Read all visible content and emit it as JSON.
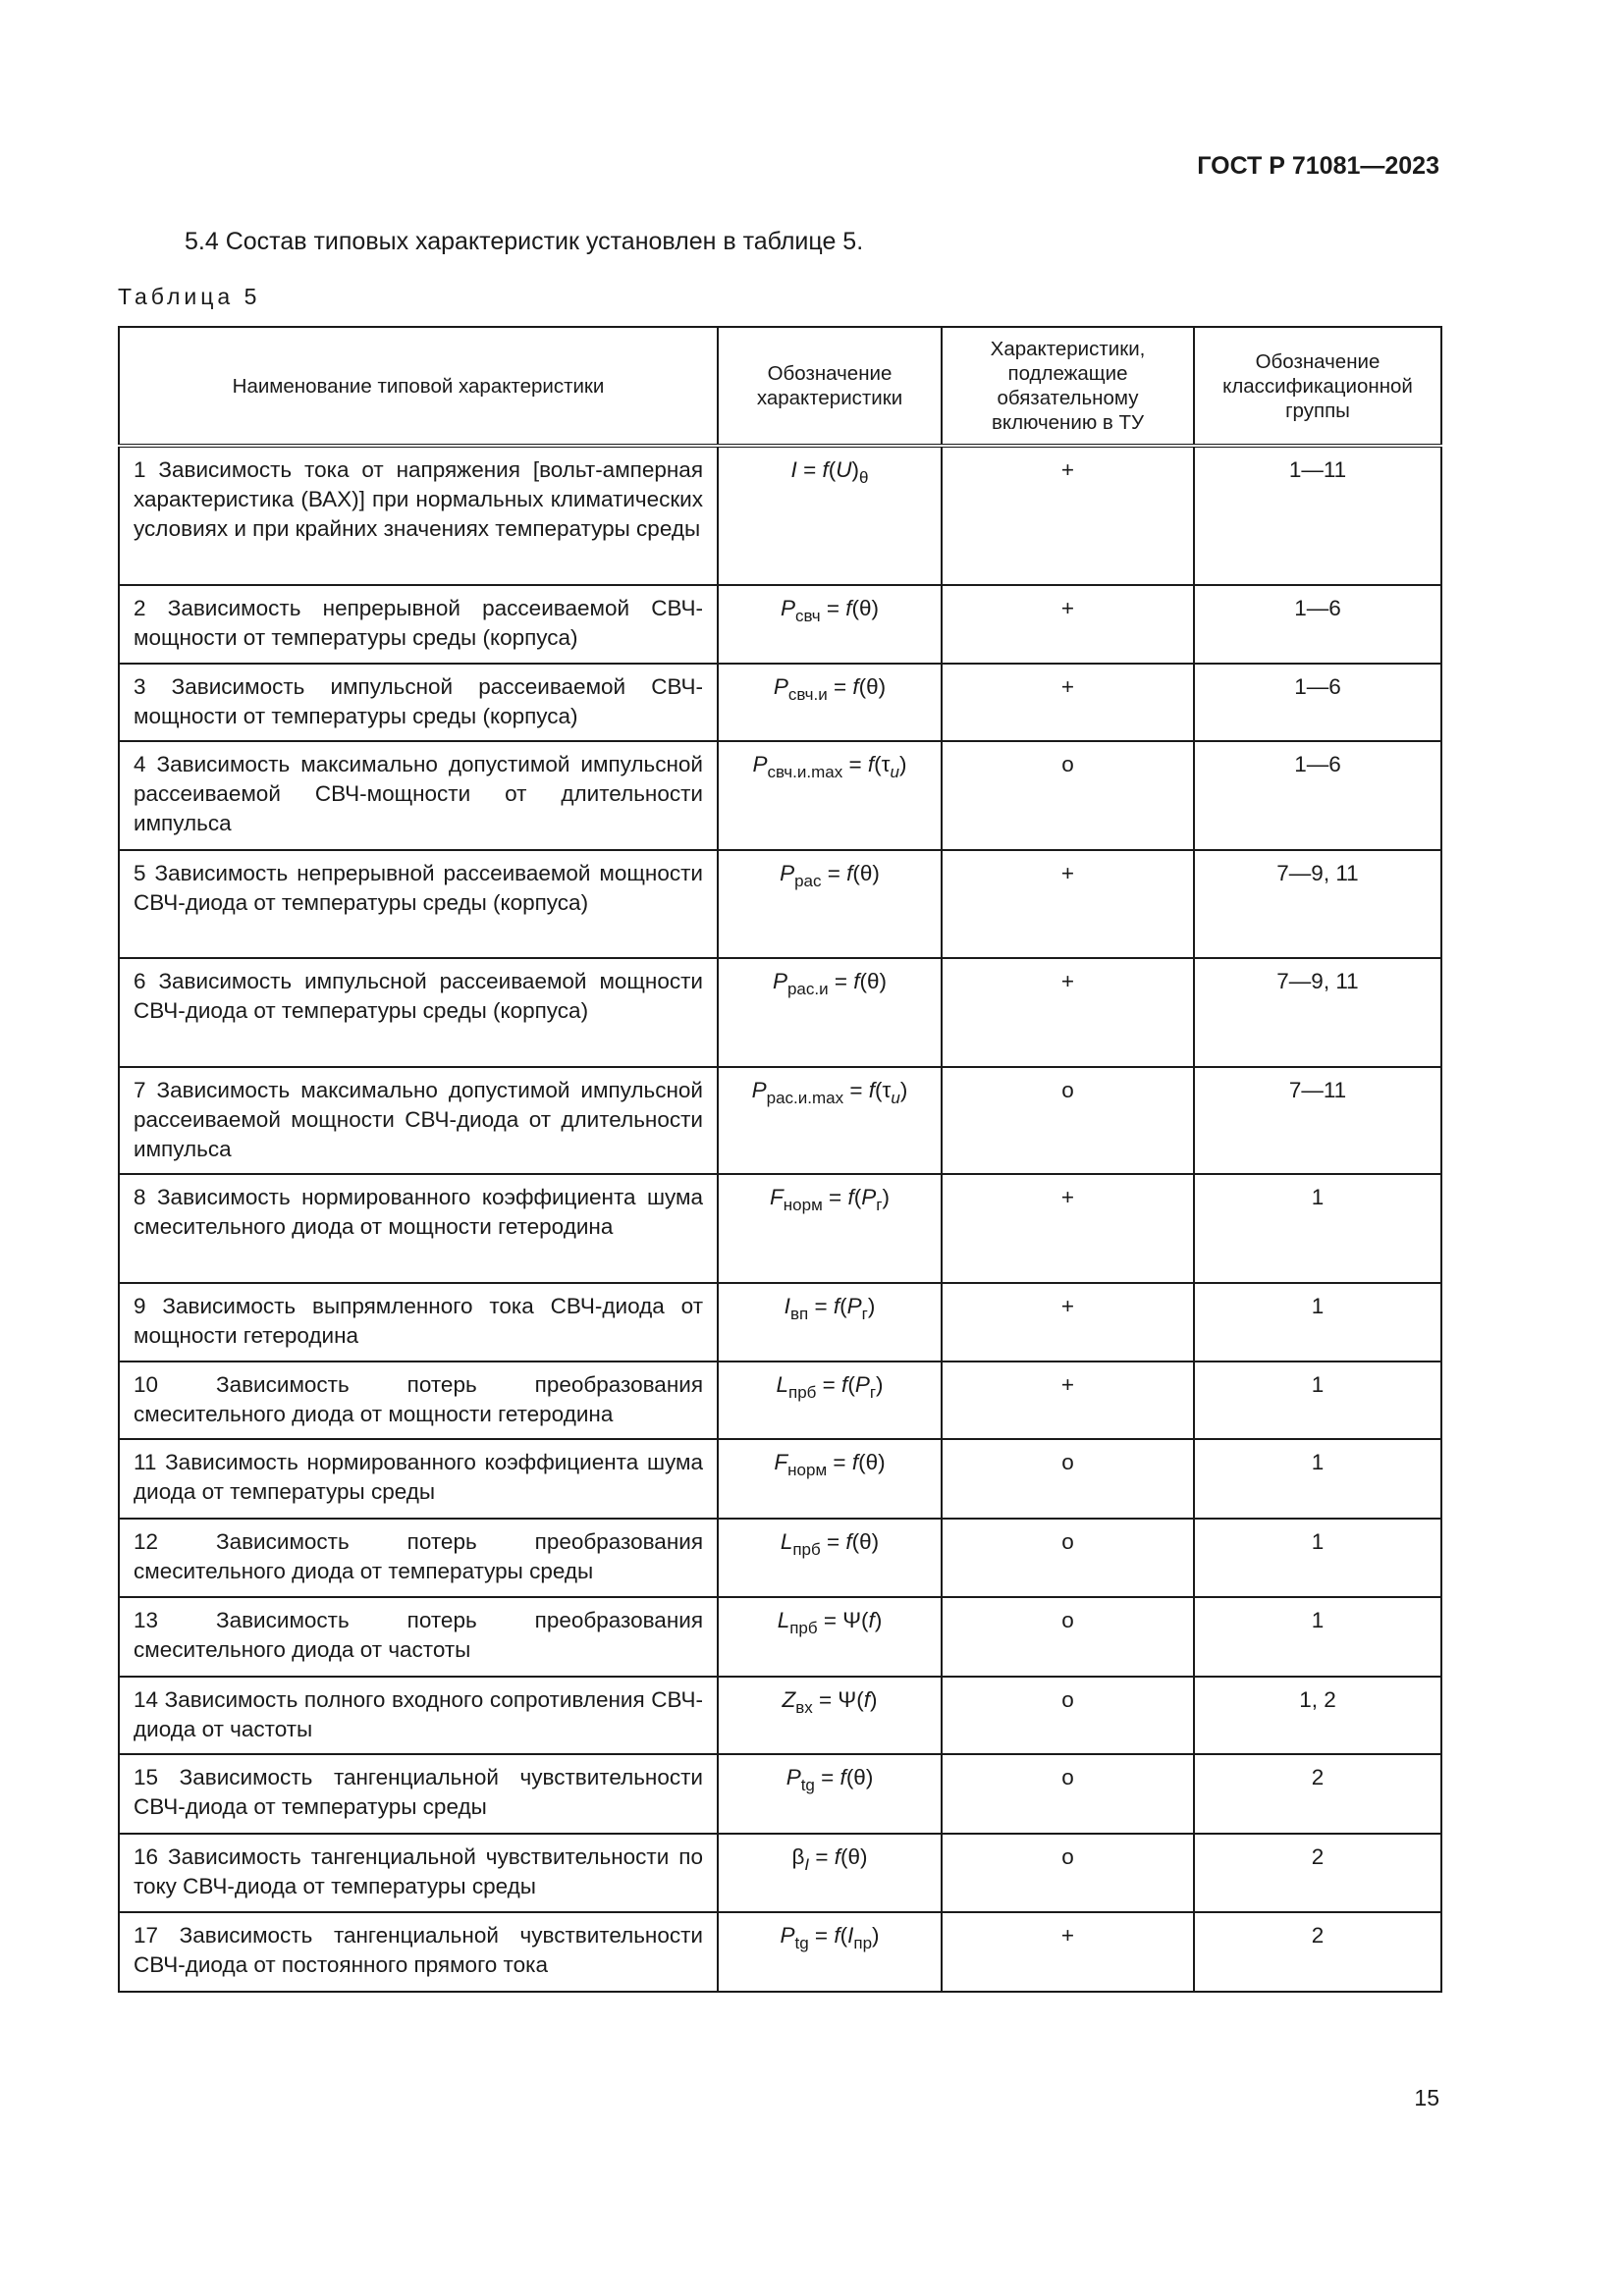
{
  "header": {
    "standard": "ГОСТ Р 71081—2023"
  },
  "paragraph": "5.4 Состав типовых характеристик установлен в таблице 5.",
  "table_caption": "Таблица 5",
  "table": {
    "columns": [
      "Наименование типовой характеристики",
      "Обозначение характеристики",
      "Характеристики, подлежащие обязательному включению в ТУ",
      "Обозначение классификационной группы"
    ],
    "rows": [
      {
        "name": "1 Зависимость тока от напряжения [вольт-амперная характеристика (ВАХ)] при нормальных климатических условиях и при крайних значениях температуры среды",
        "designation": [
          {
            "t": "I",
            "f": "it"
          },
          {
            "t": " = "
          },
          {
            "t": "f",
            "f": "it"
          },
          {
            "t": "("
          },
          {
            "t": "U",
            "f": "it"
          },
          {
            "t": ")"
          },
          {
            "t": "θ",
            "f": "sub"
          }
        ],
        "mandatory": "+",
        "group": "1—11"
      },
      {
        "name": "2 Зависимость непрерывной рассеиваемой СВЧ-мощности от температуры среды (корпуса)",
        "designation": [
          {
            "t": "P",
            "f": "it"
          },
          {
            "t": "свч",
            "f": "sub"
          },
          {
            "t": " = "
          },
          {
            "t": "f",
            "f": "it"
          },
          {
            "t": "(θ)"
          }
        ],
        "mandatory": "+",
        "group": "1—6"
      },
      {
        "name": "3 Зависимость импульсной рассеиваемой СВЧ-мощности от температуры среды (корпуса)",
        "designation": [
          {
            "t": "P",
            "f": "it"
          },
          {
            "t": "свч.и",
            "f": "sub"
          },
          {
            "t": " = "
          },
          {
            "t": "f",
            "f": "it"
          },
          {
            "t": "(θ)"
          }
        ],
        "mandatory": "+",
        "group": "1—6"
      },
      {
        "name": "4 Зависимость максимально допустимой импульсной рассеиваемой СВЧ-мощности от длительности импульса",
        "designation": [
          {
            "t": "P",
            "f": "it"
          },
          {
            "t": "свч.и.max",
            "f": "sub"
          },
          {
            "t": " = "
          },
          {
            "t": "f",
            "f": "it"
          },
          {
            "t": "(τ"
          },
          {
            "t": "u",
            "f": "subi"
          },
          {
            "t": ")"
          }
        ],
        "mandatory": "o",
        "group": "1—6"
      },
      {
        "name": "5 Зависимость непрерывной рассеиваемой мощности СВЧ-диода от температуры среды (корпуса)",
        "designation": [
          {
            "t": "P",
            "f": "it"
          },
          {
            "t": "рас",
            "f": "sub"
          },
          {
            "t": " = "
          },
          {
            "t": "f",
            "f": "it"
          },
          {
            "t": "(θ)"
          }
        ],
        "mandatory": "+",
        "group": "7—9, 11"
      },
      {
        "name": "6 Зависимость импульсной рассеиваемой мощности СВЧ-диода от температуры среды (корпуса)",
        "designation": [
          {
            "t": "P",
            "f": "it"
          },
          {
            "t": "рас.и",
            "f": "sub"
          },
          {
            "t": " = "
          },
          {
            "t": "f",
            "f": "it"
          },
          {
            "t": "(θ)"
          }
        ],
        "mandatory": "+",
        "group": "7—9, 11"
      },
      {
        "name": "7 Зависимость максимально допустимой импульсной рассеиваемой мощности СВЧ-диода от длительности импульса",
        "designation": [
          {
            "t": "P",
            "f": "it"
          },
          {
            "t": "рас.и.max",
            "f": "sub"
          },
          {
            "t": " = "
          },
          {
            "t": "f",
            "f": "it"
          },
          {
            "t": "(τ"
          },
          {
            "t": "u",
            "f": "subi"
          },
          {
            "t": ")"
          }
        ],
        "mandatory": "o",
        "group": "7—11"
      },
      {
        "name": "8 Зависимость нормированного коэффициента шума смесительного диода от мощности гетеродина",
        "designation": [
          {
            "t": "F",
            "f": "it"
          },
          {
            "t": "норм",
            "f": "sub"
          },
          {
            "t": " = "
          },
          {
            "t": "f",
            "f": "it"
          },
          {
            "t": "("
          },
          {
            "t": "P",
            "f": "it"
          },
          {
            "t": "г",
            "f": "sub"
          },
          {
            "t": ")"
          }
        ],
        "mandatory": "+",
        "group": "1"
      },
      {
        "name": "9 Зависимость выпрямленного тока СВЧ-диода от мощности гетеродина",
        "designation": [
          {
            "t": "I",
            "f": "it"
          },
          {
            "t": "вп",
            "f": "sub"
          },
          {
            "t": " = "
          },
          {
            "t": "f",
            "f": "it"
          },
          {
            "t": "("
          },
          {
            "t": "P",
            "f": "it"
          },
          {
            "t": "г",
            "f": "sub"
          },
          {
            "t": ")"
          }
        ],
        "mandatory": "+",
        "group": "1"
      },
      {
        "name": "10 Зависимость потерь преобразования смесительного диода от мощности гетеродина",
        "designation": [
          {
            "t": "L",
            "f": "it"
          },
          {
            "t": "прб",
            "f": "sub"
          },
          {
            "t": " = "
          },
          {
            "t": "f",
            "f": "it"
          },
          {
            "t": "("
          },
          {
            "t": "P",
            "f": "it"
          },
          {
            "t": "г",
            "f": "sub"
          },
          {
            "t": ")"
          }
        ],
        "mandatory": "+",
        "group": "1"
      },
      {
        "name": "11 Зависимость нормированного коэффициента шума диода от температуры среды",
        "designation": [
          {
            "t": "F",
            "f": "it"
          },
          {
            "t": "норм",
            "f": "sub"
          },
          {
            "t": " = "
          },
          {
            "t": "f",
            "f": "it"
          },
          {
            "t": "(θ)"
          }
        ],
        "mandatory": "o",
        "group": "1"
      },
      {
        "name": "12 Зависимость потерь преобразования смесительного диода от температуры среды",
        "designation": [
          {
            "t": "L",
            "f": "it"
          },
          {
            "t": "прб",
            "f": "sub"
          },
          {
            "t": " = "
          },
          {
            "t": "f",
            "f": "it"
          },
          {
            "t": "(θ)"
          }
        ],
        "mandatory": "o",
        "group": "1"
      },
      {
        "name": "13 Зависимость потерь преобразования смесительного диода от частоты",
        "designation": [
          {
            "t": "L",
            "f": "it"
          },
          {
            "t": "прб",
            "f": "sub"
          },
          {
            "t": " = Ψ("
          },
          {
            "t": "f",
            "f": "it"
          },
          {
            "t": ")"
          }
        ],
        "mandatory": "o",
        "group": "1"
      },
      {
        "name": "14 Зависимость полного входного сопротивления СВЧ-диода от частоты",
        "designation": [
          {
            "t": "Z",
            "f": "it"
          },
          {
            "t": "вх",
            "f": "sub"
          },
          {
            "t": " = Ψ("
          },
          {
            "t": "f",
            "f": "it"
          },
          {
            "t": ")"
          }
        ],
        "mandatory": "o",
        "group": "1, 2"
      },
      {
        "name": "15 Зависимость тангенциальной чувствительности СВЧ-диода от температуры среды",
        "designation": [
          {
            "t": "P",
            "f": "it"
          },
          {
            "t": "tg",
            "f": "sub"
          },
          {
            "t": " = "
          },
          {
            "t": "f",
            "f": "it"
          },
          {
            "t": "(θ)"
          }
        ],
        "mandatory": "o",
        "group": "2"
      },
      {
        "name": "16 Зависимость тангенциальной чувствительности по току СВЧ-диода от температуры среды",
        "designation": [
          {
            "t": "β"
          },
          {
            "t": "I",
            "f": "subi"
          },
          {
            "t": " = "
          },
          {
            "t": "f",
            "f": "it"
          },
          {
            "t": "(θ)"
          }
        ],
        "mandatory": "o",
        "group": "2"
      },
      {
        "name": "17 Зависимость тангенциальной чувствительности СВЧ-диода от постоянного прямого тока",
        "designation": [
          {
            "t": "P",
            "f": "it"
          },
          {
            "t": "tg",
            "f": "sub"
          },
          {
            "t": " = "
          },
          {
            "t": "f",
            "f": "it"
          },
          {
            "t": "("
          },
          {
            "t": "I",
            "f": "it"
          },
          {
            "t": "пр",
            "f": "sub"
          },
          {
            "t": ")"
          }
        ],
        "mandatory": "+",
        "group": "2"
      }
    ]
  },
  "page_number": "15"
}
